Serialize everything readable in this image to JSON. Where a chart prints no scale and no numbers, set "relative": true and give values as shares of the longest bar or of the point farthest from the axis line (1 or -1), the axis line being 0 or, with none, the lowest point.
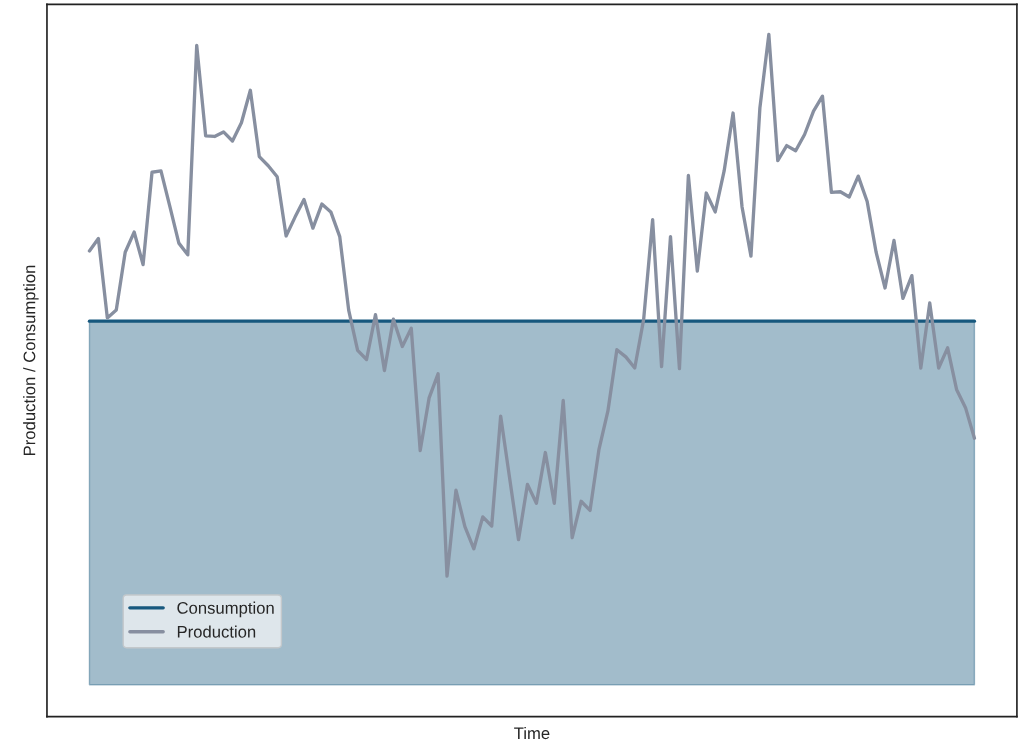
{
  "chart_data": {
    "type": "line",
    "relative": true,
    "xlabel": "Time",
    "ylabel": "Production / Consumption",
    "grid": false,
    "legend": "bottom left",
    "categories": [
      null,
      null,
      null,
      null,
      null,
      null,
      null,
      null,
      null,
      null,
      null,
      null,
      null,
      null,
      null,
      null,
      null,
      null,
      null,
      null,
      null,
      null,
      null,
      null,
      null,
      null,
      null,
      null,
      null,
      null,
      null,
      null,
      null,
      null,
      null,
      null,
      null,
      null,
      null,
      null,
      null,
      null,
      null,
      null,
      null,
      null,
      null,
      null,
      null,
      null,
      null,
      null,
      null,
      null,
      null,
      null,
      null,
      null,
      null,
      null,
      null,
      null,
      null,
      null,
      null,
      null,
      null,
      null,
      null,
      null,
      null,
      null,
      null,
      null,
      null,
      null,
      null,
      null,
      null,
      null,
      null,
      null,
      null,
      null,
      null,
      null,
      null,
      null,
      null,
      null,
      null,
      null,
      null,
      null,
      null,
      null,
      null,
      null,
      null,
      null
    ],
    "series": [
      {
        "name": "Consumption",
        "type": "area",
        "color": "#17587e",
        "values": [
          0.559,
          0.559,
          0.559,
          0.559,
          0.559,
          0.559,
          0.559,
          0.559,
          0.559,
          0.559,
          0.559,
          0.559,
          0.559,
          0.559,
          0.559,
          0.559,
          0.559,
          0.559,
          0.559,
          0.559,
          0.559,
          0.559,
          0.559,
          0.559,
          0.559,
          0.559,
          0.559,
          0.559,
          0.559,
          0.559,
          0.559,
          0.559,
          0.559,
          0.559,
          0.559,
          0.559,
          0.559,
          0.559,
          0.559,
          0.559,
          0.559,
          0.559,
          0.559,
          0.559,
          0.559,
          0.559,
          0.559,
          0.559,
          0.559,
          0.559,
          0.559,
          0.559,
          0.559,
          0.559,
          0.559,
          0.559,
          0.559,
          0.559,
          0.559,
          0.559,
          0.559,
          0.559,
          0.559,
          0.559,
          0.559,
          0.559,
          0.559,
          0.559,
          0.559,
          0.559,
          0.559,
          0.559,
          0.559,
          0.559,
          0.559,
          0.559,
          0.559,
          0.559,
          0.559,
          0.559,
          0.559,
          0.559,
          0.559,
          0.559,
          0.559,
          0.559,
          0.559,
          0.559,
          0.559,
          0.559,
          0.559,
          0.559,
          0.559,
          0.559,
          0.559,
          0.559,
          0.559,
          0.559,
          0.559,
          0.559
        ]
      },
      {
        "name": "Production",
        "color": "#878fa0",
        "values": [
          0.667,
          0.686,
          0.564,
          0.576,
          0.665,
          0.696,
          0.646,
          0.788,
          0.79,
          0.735,
          0.679,
          0.661,
          0.983,
          0.844,
          0.843,
          0.85,
          0.836,
          0.864,
          0.914,
          0.812,
          0.798,
          0.781,
          0.69,
          0.719,
          0.746,
          0.702,
          0.739,
          0.727,
          0.689,
          0.576,
          0.514,
          0.5,
          0.569,
          0.483,
          0.562,
          0.52,
          0.548,
          0.36,
          0.441,
          0.478,
          0.167,
          0.299,
          0.243,
          0.209,
          0.258,
          0.244,
          0.413,
          0.318,
          0.223,
          0.308,
          0.279,
          0.357,
          0.279,
          0.437,
          0.226,
          0.282,
          0.268,
          0.362,
          0.421,
          0.515,
          0.504,
          0.487,
          0.562,
          0.715,
          0.489,
          0.689,
          0.486,
          0.783,
          0.636,
          0.756,
          0.727,
          0.79,
          0.879,
          0.735,
          0.659,
          0.887,
          1.0,
          0.806,
          0.829,
          0.821,
          0.846,
          0.882,
          0.905,
          0.757,
          0.758,
          0.75,
          0.782,
          0.743,
          0.665,
          0.61,
          0.683,
          0.594,
          0.629,
          0.487,
          0.587,
          0.487,
          0.518,
          0.454,
          0.426,
          0.379
        ]
      }
    ]
  }
}
